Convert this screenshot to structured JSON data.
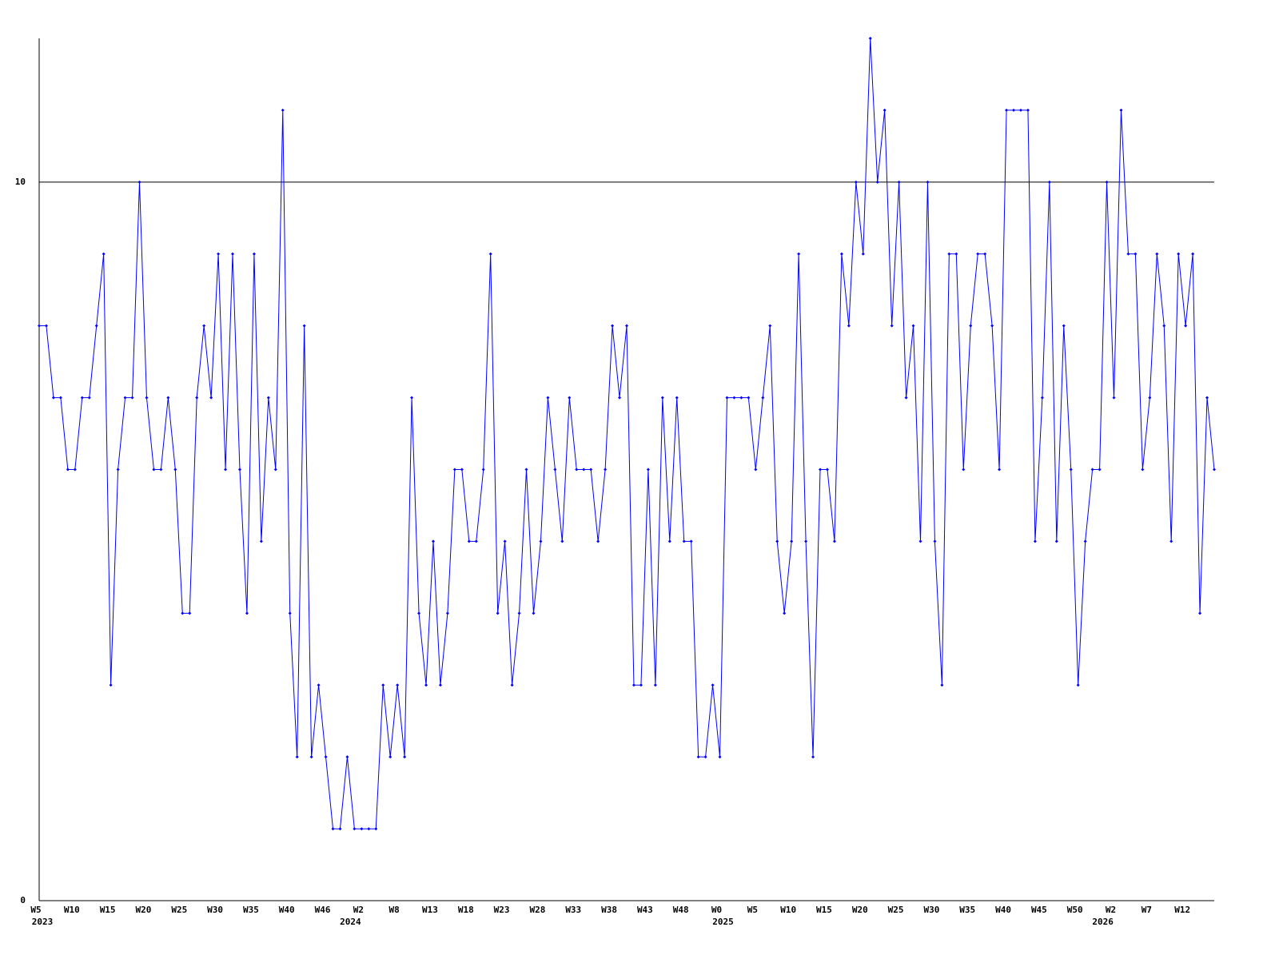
{
  "chart_data": {
    "type": "line",
    "categories": [
      "W5",
      null,
      null,
      null,
      null,
      "W10",
      null,
      null,
      null,
      null,
      "W15",
      null,
      null,
      null,
      null,
      "W20",
      null,
      null,
      null,
      null,
      "W25",
      null,
      null,
      null,
      null,
      "W30",
      null,
      null,
      null,
      null,
      "W35",
      null,
      null,
      null,
      null,
      "W40",
      null,
      null,
      null,
      null,
      "W46",
      null,
      null,
      null,
      null,
      "W2",
      null,
      null,
      null,
      null,
      "W8",
      null,
      null,
      null,
      null,
      "W13",
      null,
      null,
      null,
      null,
      "W18",
      null,
      null,
      null,
      null,
      "W23",
      null,
      null,
      null,
      null,
      "W28",
      null,
      null,
      null,
      null,
      "W33",
      null,
      null,
      null,
      null,
      "W38",
      null,
      null,
      null,
      null,
      "W43",
      null,
      null,
      null,
      null,
      "W48",
      null,
      null,
      null,
      null,
      "W0",
      null,
      null,
      null,
      null,
      "W5",
      null,
      null,
      null,
      null,
      "W10",
      null,
      null,
      null,
      null,
      "W15",
      null,
      null,
      null,
      null,
      "W20",
      null,
      null,
      null,
      null,
      "W25",
      null,
      null,
      null,
      null,
      "W30",
      null,
      null,
      null,
      null,
      "W35",
      null,
      null,
      null,
      null,
      "W40",
      null,
      null,
      null,
      null,
      "W45",
      null,
      null,
      null,
      null,
      "W50",
      null,
      null,
      null,
      null,
      "W2",
      null,
      null,
      null,
      null,
      "W7",
      null,
      null,
      null,
      null,
      "W12",
      null,
      null,
      null,
      null
    ],
    "category_years": [
      "2023",
      null,
      null,
      null,
      null,
      null,
      null,
      null,
      null,
      null,
      null,
      null,
      null,
      null,
      null,
      null,
      null,
      null,
      null,
      null,
      null,
      null,
      null,
      null,
      null,
      null,
      null,
      null,
      null,
      null,
      null,
      null,
      null,
      null,
      null,
      null,
      null,
      null,
      null,
      null,
      null,
      null,
      null,
      "2024",
      null,
      null,
      null,
      null,
      null,
      null,
      null,
      null,
      null,
      null,
      null,
      null,
      null,
      null,
      null,
      null,
      null,
      null,
      null,
      null,
      null,
      null,
      null,
      null,
      null,
      null,
      null,
      null,
      null,
      null,
      null,
      null,
      null,
      null,
      null,
      null,
      null,
      null,
      null,
      null,
      null,
      null,
      null,
      null,
      null,
      null,
      null,
      null,
      null,
      null,
      null,
      "2025",
      null,
      null,
      null,
      null,
      null,
      null,
      null,
      null,
      null,
      null,
      null,
      null,
      null,
      null,
      null,
      null,
      null,
      null,
      null,
      null,
      null,
      null,
      null,
      null,
      null,
      null,
      null,
      null,
      null,
      null,
      null,
      null,
      null,
      null,
      null,
      null,
      null,
      null,
      null,
      null,
      null,
      null,
      null,
      null,
      null,
      null,
      null,
      null,
      null,
      null,
      null,
      null,
      "2026",
      null,
      null,
      null,
      null,
      null,
      null,
      null,
      null,
      null,
      null,
      null,
      null,
      null,
      null,
      null,
      null
    ],
    "series": [
      {
        "color": "#0000ff",
        "values": [
          8,
          8,
          7,
          7,
          6,
          6,
          7,
          7,
          8,
          9,
          3,
          6,
          7,
          7,
          10,
          7,
          6,
          6,
          7,
          6,
          4,
          4,
          7,
          8,
          7,
          9,
          6,
          9,
          6,
          4,
          9,
          5,
          7,
          6,
          11,
          4,
          2,
          8,
          2,
          3,
          2,
          1,
          1,
          2,
          1,
          1,
          1,
          1,
          3,
          2,
          3,
          2,
          7,
          4,
          3,
          5,
          3,
          4,
          6,
          6,
          5,
          5,
          6,
          9,
          4,
          5,
          3,
          4,
          6,
          4,
          5,
          7,
          6,
          5,
          7,
          6,
          6,
          6,
          5,
          6,
          8,
          7,
          8,
          3,
          3,
          6,
          3,
          7,
          5,
          7,
          5,
          5,
          2,
          2,
          3,
          2,
          7,
          7,
          7,
          7,
          6,
          7,
          8,
          5,
          4,
          5,
          9,
          5,
          2,
          6,
          6,
          5,
          9,
          8,
          10,
          9,
          12,
          10,
          11,
          8,
          10,
          7,
          8,
          5,
          10,
          5,
          3,
          9,
          9,
          6,
          8,
          9,
          9,
          8,
          6,
          11,
          11,
          11,
          11,
          5,
          7,
          10,
          5,
          8,
          6,
          3,
          5,
          6,
          6,
          10,
          7,
          11,
          9,
          9,
          6,
          7,
          9,
          8,
          5,
          9,
          8,
          9,
          4,
          7,
          6
        ]
      }
    ],
    "ylim": [
      0,
      12
    ],
    "yticks": [
      0,
      10
    ],
    "grid": true
  }
}
